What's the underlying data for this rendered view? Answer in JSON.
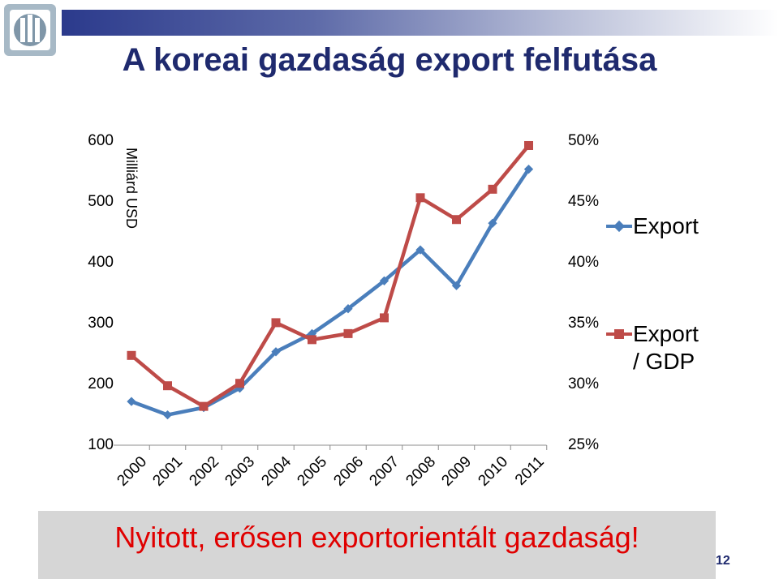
{
  "slide": {
    "title": "A koreai gazdaság export felfutása",
    "footer": "Nyitott, erősen exportorientált gazdaság!",
    "page_number": "12"
  },
  "chart_data": {
    "type": "line",
    "categories": [
      "2000",
      "2001",
      "2002",
      "2003",
      "2004",
      "2005",
      "2006",
      "2007",
      "2008",
      "2009",
      "2010",
      "2011"
    ],
    "ylabel": "Milliárd USD",
    "ylim": [
      100,
      600
    ],
    "y_ticks": [
      "600",
      "500",
      "400",
      "300",
      "200",
      "100"
    ],
    "y2lim": [
      0.25,
      0.5
    ],
    "y2_ticks": [
      "50%",
      "45%",
      "40%",
      "35%",
      "30%",
      "25%"
    ],
    "series": [
      {
        "name": "Export",
        "axis": "left",
        "color": "#4a7ebb",
        "marker": "diamond",
        "values": [
          172,
          150,
          162,
          194,
          254,
          284,
          325,
          371,
          422,
          363,
          466,
          555
        ]
      },
      {
        "name": "Export / GDP",
        "axis": "right",
        "color": "#be4b48",
        "marker": "square",
        "values": [
          0.324,
          0.299,
          0.282,
          0.301,
          0.351,
          0.337,
          0.342,
          0.355,
          0.454,
          0.436,
          0.461,
          0.497
        ]
      }
    ],
    "legend": {
      "position": "right",
      "items": [
        {
          "label": "Export"
        },
        {
          "label_line1": "Export",
          "label_line2": "/ GDP"
        }
      ]
    }
  }
}
